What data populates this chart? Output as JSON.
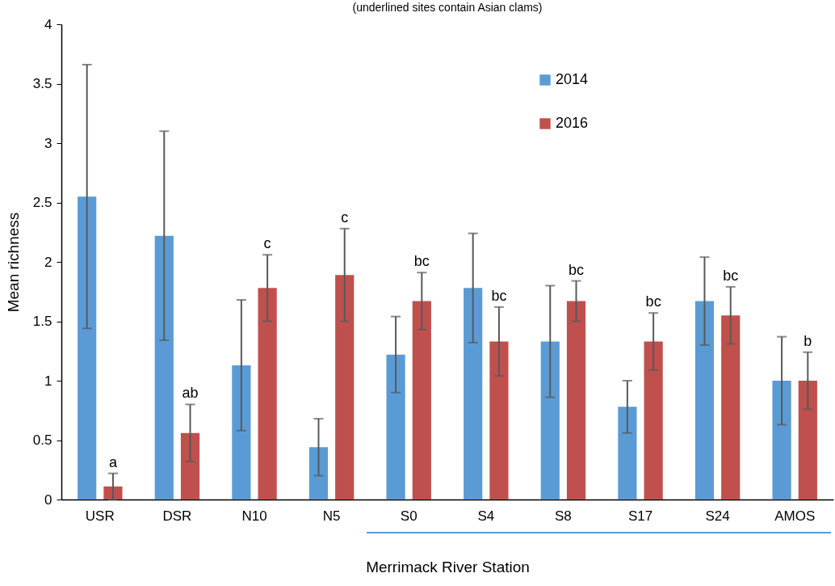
{
  "chart_data": {
    "type": "bar",
    "subtitle": "(underlined sites contain Asian clams)",
    "xlabel": "Merrimack River Station",
    "ylabel": "Mean richness",
    "categories": [
      "USR",
      "DSR",
      "N10",
      "N5",
      "S0",
      "S4",
      "S8",
      "S17",
      "S24",
      "AMOS"
    ],
    "series": [
      {
        "name": "2014",
        "color": "#5b9bd5",
        "values": [
          2.55,
          2.22,
          1.13,
          0.44,
          1.22,
          1.78,
          1.33,
          0.78,
          1.67,
          1.0
        ],
        "errors": [
          1.11,
          0.88,
          0.55,
          0.24,
          0.32,
          0.46,
          0.47,
          0.22,
          0.37,
          0.37
        ]
      },
      {
        "name": "2016",
        "color": "#c0504d",
        "values": [
          0.11,
          0.56,
          1.78,
          1.89,
          1.67,
          1.33,
          1.67,
          1.33,
          1.55,
          1.0
        ],
        "errors": [
          0.11,
          0.24,
          0.28,
          0.39,
          0.24,
          0.29,
          0.17,
          0.24,
          0.24,
          0.24
        ]
      }
    ],
    "ylim": [
      0,
      4
    ],
    "yticks": [
      0,
      0.5,
      1,
      1.5,
      2,
      2.5,
      3,
      3.5,
      4
    ],
    "grid": false,
    "legend": "top right",
    "annotations": [
      {
        "text": "a",
        "x": "USR",
        "y": 0.11
      },
      {
        "text": "ab",
        "x": "DSR",
        "y": 0.56
      },
      {
        "text": "c",
        "x": "N10",
        "y": 1.78
      },
      "c",
      {
        "text": "bc",
        "x": "S0",
        "y": 1.67
      },
      {
        "text": "bc",
        "x": "S4",
        "y": 1.33
      },
      {
        "text": "bc",
        "x": "S8",
        "y": 1.67
      },
      {
        "text": "bc",
        "x": "S17",
        "y": 1.33
      },
      {
        "text": "bc",
        "x": "S24",
        "y": 1.55
      },
      {
        "text": "b",
        "x": "AMOS",
        "y": 1.0
      }
    ]
  }
}
